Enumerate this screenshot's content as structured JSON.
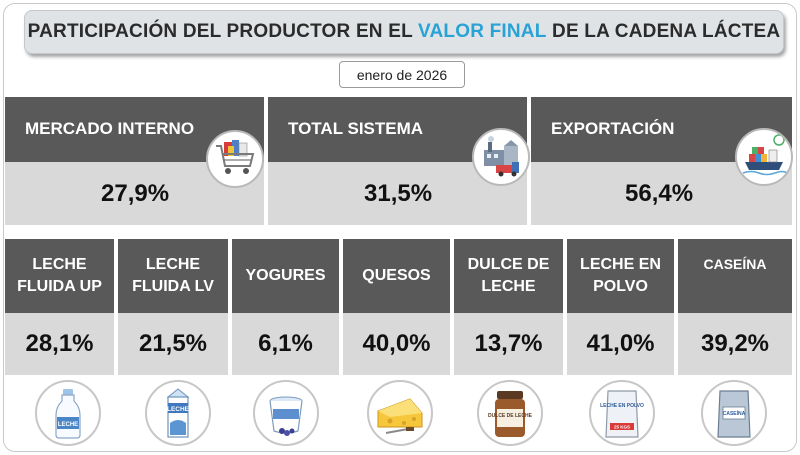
{
  "title": {
    "part1": "PARTICIPACIÓN DEL PRODUCTOR EN EL ",
    "highlight": "VALOR FINAL",
    "part2": " DE LA CADENA LÁCTEA"
  },
  "date": "enero de 2026",
  "summary": [
    {
      "label": "MERCADO INTERNO",
      "value": "27,9%",
      "icon": "shopping-cart-icon"
    },
    {
      "label": "TOTAL SISTEMA",
      "value": "31,5%",
      "icon": "factory-truck-icon"
    },
    {
      "label": "EXPORTACIÓN",
      "value": "56,4%",
      "icon": "cargo-ship-icon"
    }
  ],
  "products": [
    {
      "label": "LECHE FLUIDA UP",
      "value": "28,1%",
      "icon": "milk-bottle-icon",
      "icon_text": "LECHE"
    },
    {
      "label": "LECHE FLUIDA LV",
      "value": "21,5%",
      "icon": "milk-carton-icon",
      "icon_text": "LECHE"
    },
    {
      "label": "YOGURES",
      "value": "6,1%",
      "icon": "yogurt-cup-icon"
    },
    {
      "label": "QUESOS",
      "value": "40,0%",
      "icon": "cheese-icon"
    },
    {
      "label": "DULCE DE LECHE",
      "value": "13,7%",
      "icon": "dulce-de-leche-jar-icon",
      "icon_text": "DULCE DE LECHE"
    },
    {
      "label": "LECHE EN POLVO",
      "value": "41,0%",
      "icon": "powdered-milk-bag-icon",
      "icon_text": "LECHE EN POLVO",
      "icon_subtext": "25 KGS"
    },
    {
      "label": "CASEÍNA",
      "value": "39,2%",
      "icon": "casein-bag-icon",
      "icon_text": "CASEÍNA"
    }
  ],
  "colors": {
    "header_bg": "#595959",
    "value_bg": "#d9d9d9",
    "title_highlight": "#29a3d6",
    "title_bg": "#dfe3e6"
  }
}
